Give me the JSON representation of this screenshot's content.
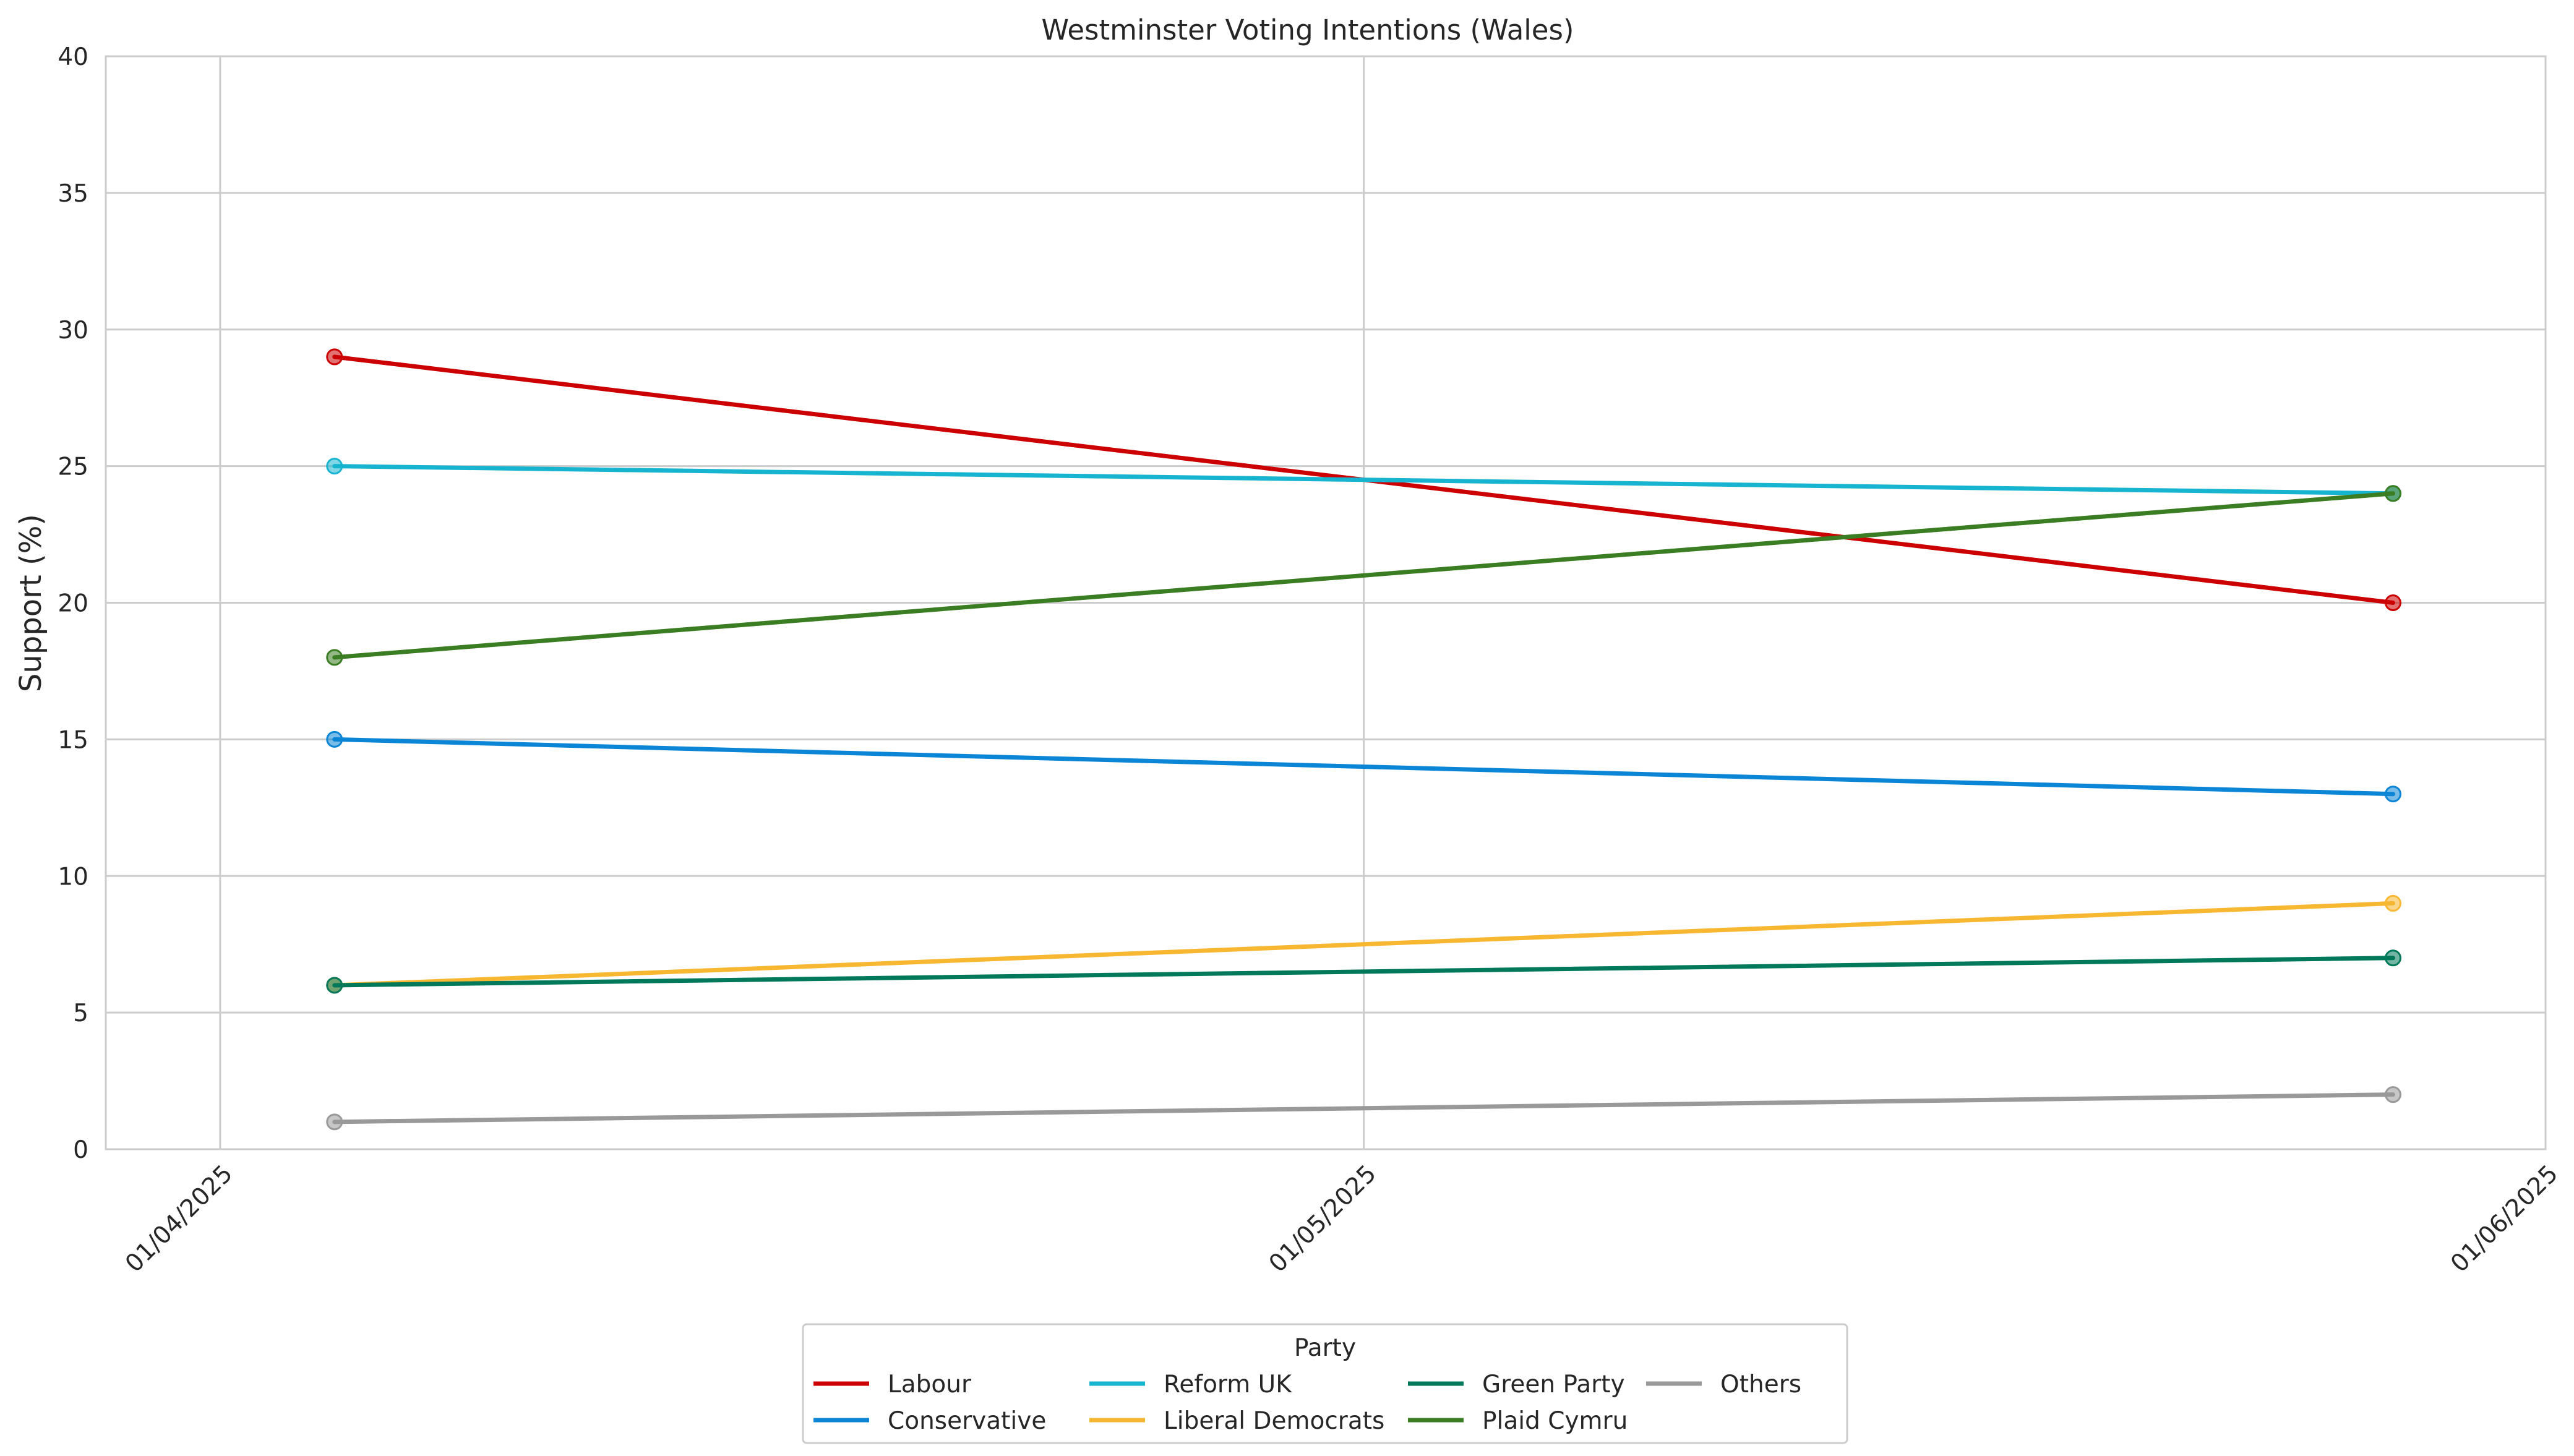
{
  "chart_data": {
    "type": "line",
    "title": "Westminster Voting Intentions (Wales)",
    "xlabel": "",
    "ylabel": "Support (%)",
    "x": [
      "2025-04-04",
      "2025-05-28"
    ],
    "xlim": [
      "2025-03-29",
      "2025-06-01"
    ],
    "ylim": [
      0,
      40
    ],
    "yticks": [
      0,
      5,
      10,
      15,
      20,
      25,
      30,
      35,
      40
    ],
    "xticks": [
      "2025-04-01",
      "2025-05-01",
      "2025-06-01"
    ],
    "xtick_labels": [
      "01/04/2025",
      "01/05/2025",
      "01/06/2025"
    ],
    "grid": true,
    "legend": {
      "title": "Party",
      "placement": "bottom-center"
    },
    "series": [
      {
        "name": "Labour",
        "color": "#cc0000",
        "values": [
          29,
          20
        ]
      },
      {
        "name": "Conservative",
        "color": "#0b85d6",
        "values": [
          15,
          13
        ]
      },
      {
        "name": "Reform UK",
        "color": "#17b4d0",
        "values": [
          25,
          24
        ]
      },
      {
        "name": "Liberal Democrats",
        "color": "#f7b731",
        "values": [
          6,
          9
        ]
      },
      {
        "name": "Green Party",
        "color": "#00785a",
        "values": [
          6,
          7
        ]
      },
      {
        "name": "Plaid Cymru",
        "color": "#3a7d22",
        "values": [
          18,
          24
        ]
      },
      {
        "name": "Others",
        "color": "#999999",
        "values": [
          1,
          2
        ]
      }
    ]
  }
}
